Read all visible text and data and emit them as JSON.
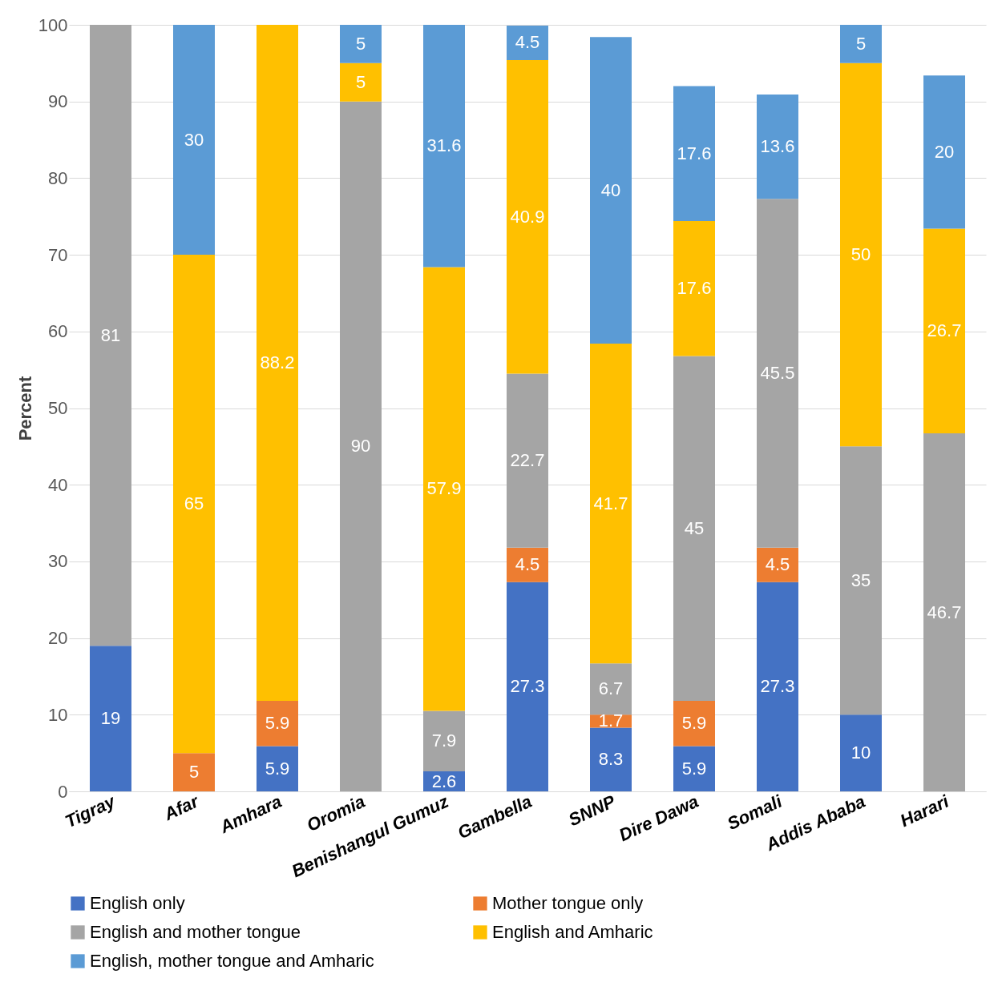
{
  "chart_data": {
    "type": "bar",
    "stacked": true,
    "ylabel": "Percent",
    "categories": [
      "Tigray",
      "Afar",
      "Amhara",
      "Oromia",
      "Benishangul Gumuz",
      "Gambella",
      "SNNP",
      "Dire Dawa",
      "Somali",
      "Addis Ababa",
      "Harari"
    ],
    "series": [
      {
        "name": "English only",
        "color": "#4472c4",
        "values": [
          19,
          null,
          5.9,
          null,
          2.6,
          27.3,
          8.3,
          5.9,
          27.3,
          10,
          null
        ]
      },
      {
        "name": "Mother tongue only",
        "color": "#ed7d31",
        "values": [
          null,
          5,
          5.9,
          null,
          null,
          4.5,
          1.7,
          5.9,
          4.5,
          null,
          null
        ]
      },
      {
        "name": "English and mother tongue",
        "color": "#a5a5a5",
        "values": [
          81,
          null,
          null,
          90,
          7.9,
          22.7,
          6.7,
          45,
          45.5,
          35,
          46.7
        ]
      },
      {
        "name": "English and Amharic",
        "color": "#ffc000",
        "values": [
          null,
          65,
          88.2,
          5,
          57.9,
          40.9,
          41.7,
          17.6,
          null,
          50,
          26.7
        ]
      },
      {
        "name": "English, mother tongue and Amharic",
        "color": "#5b9bd5",
        "values": [
          null,
          30,
          null,
          5,
          31.6,
          4.5,
          40,
          17.6,
          13.6,
          5,
          20
        ]
      }
    ],
    "ylim": [
      0,
      100
    ],
    "yticks": [
      0,
      10,
      20,
      30,
      40,
      50,
      60,
      70,
      80,
      90,
      100
    ],
    "grid": "y",
    "legend": "bottom",
    "data_labels": true
  }
}
